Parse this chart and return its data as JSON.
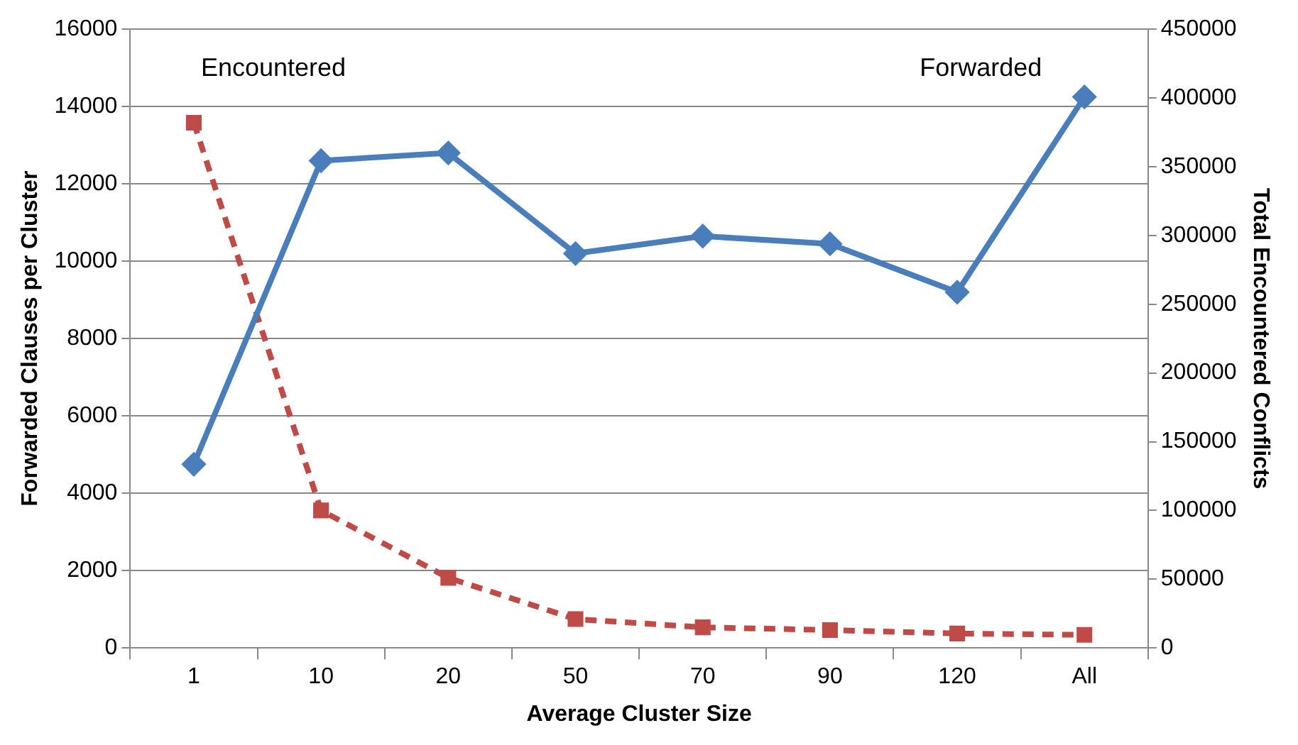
{
  "chart_data": {
    "type": "line",
    "xlabel": "Average Cluster Size",
    "ylabel": "Forwarded Clauses per Cluster",
    "y2label": "Total Encountered Conflicts",
    "categories": [
      "1",
      "10",
      "20",
      "50",
      "70",
      "90",
      "120",
      "All"
    ],
    "series": [
      {
        "name": "Forwarded",
        "color": "#4a7ebb",
        "marker": "diamond",
        "line_style": "solid",
        "values": [
          4750,
          12600,
          12800,
          10200,
          10650,
          10450,
          9200,
          14250
        ]
      },
      {
        "name": "Encountered",
        "color": "#be4b48",
        "marker": "square",
        "line_style": "dashed",
        "axis": "y2",
        "values": [
          382000,
          100000,
          51000,
          21000,
          15000,
          13000,
          10500,
          9500
        ]
      }
    ],
    "ylim": [
      0,
      16000
    ],
    "yticks": [
      0,
      2000,
      4000,
      6000,
      8000,
      10000,
      12000,
      14000,
      16000
    ],
    "y2lim": [
      0,
      450000
    ],
    "y2ticks": [
      0,
      50000,
      100000,
      150000,
      200000,
      250000,
      300000,
      350000,
      400000,
      450000
    ],
    "grid": "y",
    "legend": false
  }
}
